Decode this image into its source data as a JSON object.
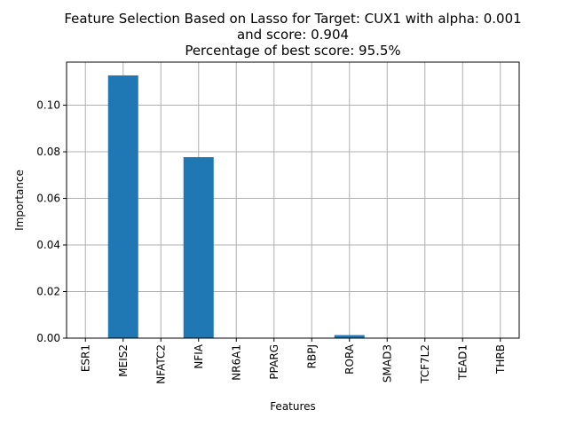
{
  "chart_data": {
    "type": "bar",
    "title_lines": [
      "Feature Selection Based on Lasso for Target: CUX1 with alpha: 0.001",
      "and score: 0.904",
      "Percentage of best score: 95.5%"
    ],
    "xlabel": "Features",
    "ylabel": "Importance",
    "categories": [
      "ESR1",
      "MEIS2",
      "NFATC2",
      "NFIA",
      "NR6A1",
      "PPARG",
      "RBPJ",
      "RORA",
      "SMAD3",
      "TCF7L2",
      "TEAD1",
      "THRB"
    ],
    "values": [
      0,
      0.1128,
      0,
      0.0777,
      0,
      0,
      0,
      0.0013,
      0,
      0,
      0,
      0
    ],
    "ylim": [
      0,
      0.1185
    ],
    "yticks": [
      0.0,
      0.02,
      0.04,
      0.06,
      0.08,
      0.1
    ],
    "ytick_labels": [
      "0.00",
      "0.02",
      "0.04",
      "0.06",
      "0.08",
      "0.10"
    ],
    "grid": true,
    "bar_color": "#1f77b4",
    "grid_color": "#b0b0b0"
  }
}
